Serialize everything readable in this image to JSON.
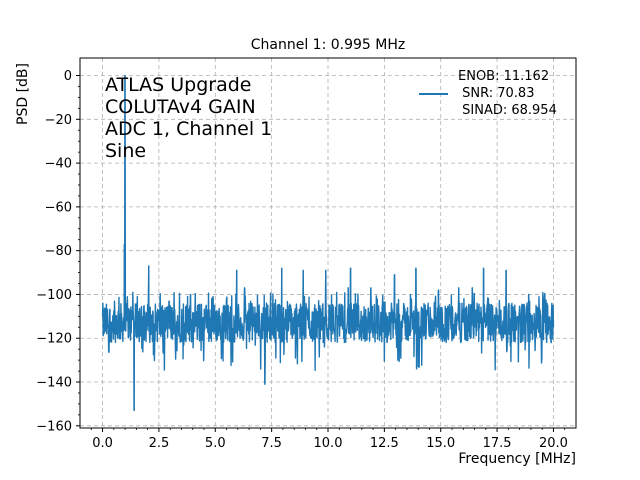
{
  "chart_data": {
    "type": "line",
    "title": "Channel 1: 0.995 MHz",
    "xlabel": "Frequency [MHz]",
    "ylabel": "PSD [dB]",
    "xlim": [
      -1.0,
      21.0
    ],
    "ylim": [
      -161,
      8
    ],
    "xticks": [
      0,
      2.5,
      5,
      7.5,
      10,
      12.5,
      15,
      17.5,
      20
    ],
    "xtick_labels": [
      "0.0",
      "2.5",
      "5.0",
      "7.5",
      "10.0",
      "12.5",
      "15.0",
      "17.5",
      "20.0"
    ],
    "yticks": [
      0,
      -20,
      -40,
      -60,
      -80,
      -100,
      -120,
      -140,
      -160
    ],
    "ytick_labels": [
      "0",
      "−20",
      "−40",
      "−60",
      "−80",
      "−100",
      "−120",
      "−140",
      "−160"
    ],
    "grid": true,
    "annotation_lines": [
      "ATLAS Upgrade",
      "COLUTAv4 GAIN",
      "ADC 1, Channel 1",
      "Sine"
    ],
    "legend_lines": [
      "ENOB: 11.162",
      " SNR: 70.83",
      " SINAD: 68.954"
    ],
    "legend_position": "top-right",
    "series": [
      {
        "color": "#1f77b4",
        "noise_floor_db": -113,
        "x_range": [
          0,
          20
        ],
        "peaks": [
          {
            "x": 0.995,
            "y": 0
          },
          {
            "x": 0.97,
            "y": -77
          },
          {
            "x": 1.4,
            "y": -153
          },
          {
            "x": 2.05,
            "y": -87
          },
          {
            "x": 2.95,
            "y": -103
          },
          {
            "x": 3.9,
            "y": -100
          },
          {
            "x": 4.9,
            "y": -101
          },
          {
            "x": 5.95,
            "y": -89
          },
          {
            "x": 6.3,
            "y": -97
          },
          {
            "x": 7.2,
            "y": -141
          },
          {
            "x": 7.95,
            "y": -88
          },
          {
            "x": 8.9,
            "y": -89
          },
          {
            "x": 9.9,
            "y": -89
          },
          {
            "x": 10.9,
            "y": -97
          },
          {
            "x": 11.0,
            "y": -88
          },
          {
            "x": 11.9,
            "y": -97
          },
          {
            "x": 12.95,
            "y": -91
          },
          {
            "x": 13.9,
            "y": -88
          },
          {
            "x": 14.9,
            "y": -98
          },
          {
            "x": 15.8,
            "y": -97
          },
          {
            "x": 16.4,
            "y": -97
          },
          {
            "x": 16.9,
            "y": -88
          },
          {
            "x": 17.9,
            "y": -89
          },
          {
            "x": 18.9,
            "y": -100
          },
          {
            "x": 19.6,
            "y": -101
          }
        ]
      }
    ]
  }
}
